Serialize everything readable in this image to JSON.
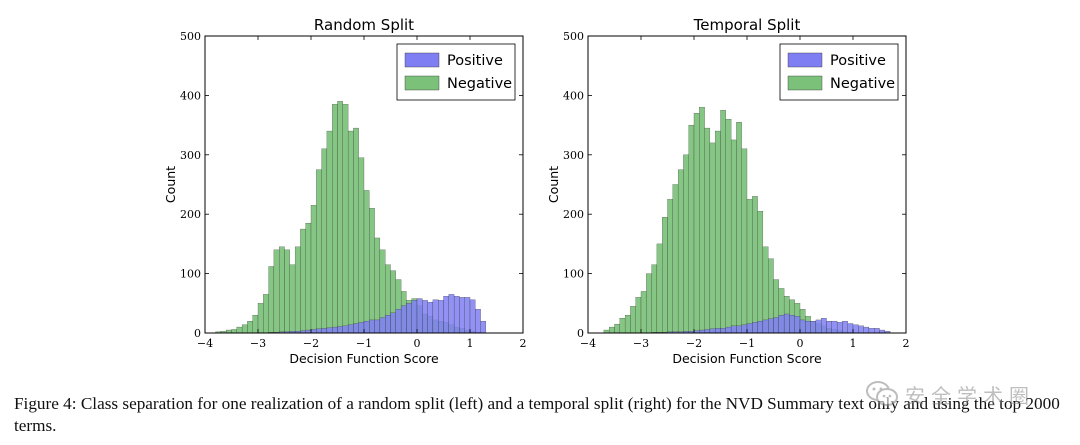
{
  "chart_data": [
    {
      "type": "histogram",
      "title": "Random Split",
      "xlabel": "Decision Function Score",
      "ylabel": "Count",
      "xlim": [
        -4,
        2
      ],
      "ylim": [
        0,
        500
      ],
      "xticks": [
        "−4",
        "−3",
        "−2",
        "−1",
        "0",
        "1",
        "2"
      ],
      "yticks": [
        "0",
        "100",
        "200",
        "300",
        "400",
        "500"
      ],
      "legend_position": "top-right",
      "bin_start": -3.9,
      "bin_width": 0.1,
      "series": [
        {
          "name": "Positive",
          "color": "#7f7ff3",
          "values": [
            0,
            0,
            0,
            0,
            0,
            0,
            0,
            0,
            0,
            0,
            0,
            1,
            1,
            2,
            2,
            3,
            3,
            4,
            5,
            6,
            7,
            8,
            9,
            10,
            11,
            12,
            14,
            16,
            18,
            20,
            22,
            22,
            26,
            30,
            34,
            40,
            46,
            50,
            55,
            58,
            55,
            52,
            56,
            55,
            62,
            65,
            62,
            60,
            60,
            56,
            40,
            20
          ]
        },
        {
          "name": "Negative",
          "color": "#7cc17a",
          "values": [
            0,
            2,
            3,
            5,
            6,
            10,
            14,
            20,
            30,
            50,
            65,
            112,
            140,
            145,
            140,
            115,
            145,
            175,
            185,
            215,
            275,
            310,
            340,
            385,
            390,
            385,
            340,
            345,
            295,
            240,
            210,
            160,
            140,
            115,
            105,
            90,
            70,
            55,
            58,
            46,
            32,
            28,
            22,
            20,
            18,
            14,
            10,
            8,
            5,
            3,
            1,
            0
          ]
        }
      ]
    },
    {
      "type": "histogram",
      "title": "Temporal Split",
      "xlabel": "Decision Function Score",
      "ylabel": "Count",
      "xlim": [
        -4,
        2
      ],
      "ylim": [
        0,
        500
      ],
      "xticks": [
        "−4",
        "−3",
        "−2",
        "−1",
        "0",
        "1",
        "2"
      ],
      "yticks": [
        "0",
        "100",
        "200",
        "300",
        "400",
        "500"
      ],
      "legend_position": "top-right",
      "bin_start": -3.9,
      "bin_width": 0.1,
      "series": [
        {
          "name": "Positive",
          "color": "#7f7ff3",
          "values": [
            0,
            0,
            0,
            0,
            0,
            0,
            0,
            0,
            0,
            0,
            0,
            1,
            1,
            1,
            2,
            2,
            2,
            3,
            3,
            4,
            5,
            6,
            7,
            8,
            8,
            10,
            12,
            12,
            14,
            16,
            18,
            20,
            22,
            24,
            26,
            30,
            32,
            30,
            28,
            22,
            20,
            20,
            22,
            25,
            20,
            20,
            18,
            20,
            16,
            14,
            12,
            10,
            8,
            8,
            5,
            3,
            0,
            0
          ]
        },
        {
          "name": "Negative",
          "color": "#7cc17a",
          "values": [
            0,
            0,
            5,
            10,
            15,
            25,
            30,
            45,
            60,
            70,
            100,
            115,
            150,
            195,
            225,
            250,
            275,
            300,
            350,
            370,
            380,
            345,
            320,
            340,
            375,
            360,
            325,
            355,
            310,
            225,
            230,
            205,
            145,
            125,
            90,
            75,
            62,
            56,
            50,
            40,
            28,
            20,
            16,
            12,
            8,
            6,
            4,
            2,
            1,
            0,
            0,
            0,
            0,
            0,
            0,
            0,
            0,
            0
          ]
        }
      ]
    }
  ],
  "caption": "Figure 4: Class separation for one realization of a random split (left) and a temporal split (right) for the NVD Summary text only and using the top 2000 terms.",
  "watermark": {
    "text": "安全学术圈",
    "icon": "wechat-logo-icon"
  }
}
